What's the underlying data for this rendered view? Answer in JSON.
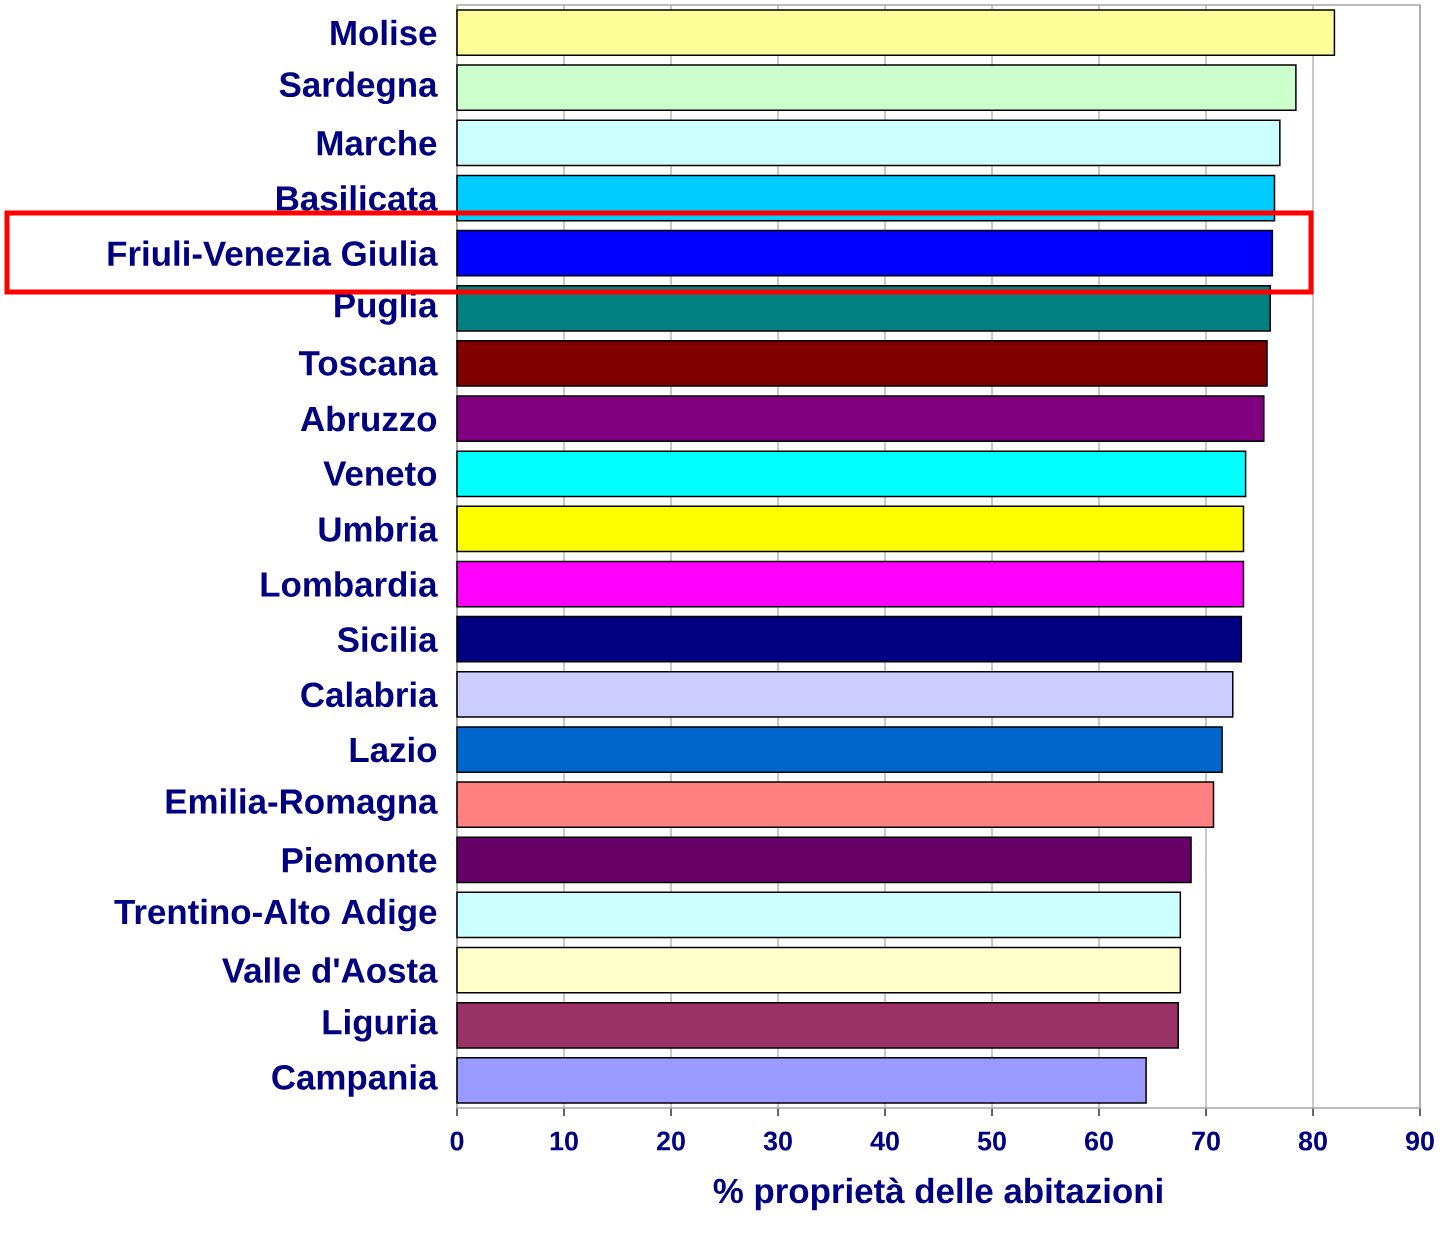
{
  "chart_data": {
    "type": "bar",
    "orientation": "horizontal",
    "xlabel": "% proprietà delle abitazioni",
    "categories": [
      "Molise",
      "Sardegna",
      "Marche",
      "Basilicata",
      "Friuli-Venezia Giulia",
      "Puglia",
      "Toscana",
      "Abruzzo",
      "Veneto",
      "Umbria",
      "Lombardia",
      "Sicilia",
      "Calabria",
      "Lazio",
      "Emilia-Romagna",
      "Piemonte",
      "Trentino-Alto Adige",
      "Valle d'Aosta",
      "Liguria",
      "Campania"
    ],
    "values": [
      82.0,
      78.4,
      76.9,
      76.4,
      76.2,
      76.0,
      75.7,
      75.4,
      73.7,
      73.5,
      73.5,
      73.3,
      72.5,
      71.5,
      70.7,
      68.6,
      67.6,
      67.6,
      67.4,
      64.4
    ],
    "colors": [
      "#ffff99",
      "#ccffcc",
      "#ccffff",
      "#00ccff",
      "#0000ff",
      "#008080",
      "#800000",
      "#800080",
      "#00ffff",
      "#ffff00",
      "#ff00ff",
      "#000080",
      "#ccccff",
      "#0066cc",
      "#ff8080",
      "#660066",
      "#ccffff",
      "#ffffcc",
      "#993366",
      "#9999ff"
    ],
    "xlim": [
      0,
      90
    ],
    "xticks": [
      0,
      10,
      20,
      30,
      40,
      50,
      60,
      70,
      80,
      90
    ],
    "grid": "x"
  }
}
